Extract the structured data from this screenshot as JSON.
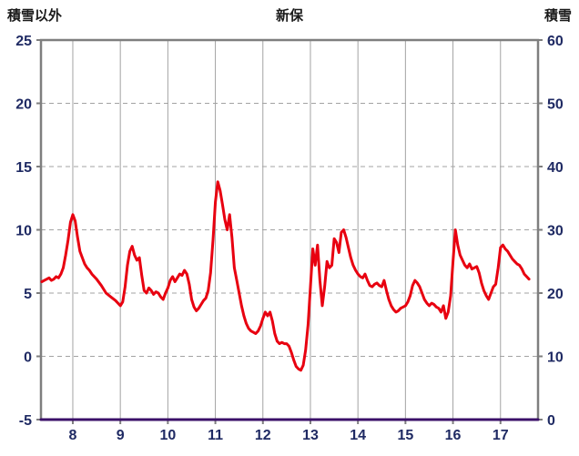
{
  "chart_data": {
    "type": "line",
    "title": "新保",
    "left_axis": {
      "label": "積雪以外",
      "min": -5,
      "max": 25,
      "ticks": [
        25,
        20,
        15,
        10,
        5,
        0,
        -5
      ]
    },
    "right_axis": {
      "label": "積雪",
      "min": 0,
      "max": 60,
      "ticks": [
        60,
        50,
        40,
        30,
        20,
        10,
        0
      ]
    },
    "x_axis": {
      "min": 7.33,
      "max": 17.79,
      "ticks": [
        8,
        9,
        10,
        11,
        12,
        13,
        14,
        15,
        16,
        17
      ]
    },
    "grid": {
      "vertical": "solid",
      "horizontal": "dashed",
      "visible": true
    },
    "legend": "none",
    "style": {
      "grid_color": "#a3a3a3",
      "border_color": "#7f7f7f",
      "tick_color": "#1f2a63",
      "background": "#ffffff"
    },
    "series": [
      {
        "name": "積雪以外",
        "axis": "left",
        "color": "#e80010",
        "width": 3,
        "points": [
          [
            7.35,
            5.9
          ],
          [
            7.4,
            6.0
          ],
          [
            7.45,
            6.1
          ],
          [
            7.5,
            6.2
          ],
          [
            7.55,
            6.0
          ],
          [
            7.6,
            6.1
          ],
          [
            7.65,
            6.3
          ],
          [
            7.7,
            6.2
          ],
          [
            7.75,
            6.5
          ],
          [
            7.8,
            7.0
          ],
          [
            7.85,
            8.0
          ],
          [
            7.9,
            9.2
          ],
          [
            7.95,
            10.6
          ],
          [
            8.0,
            11.2
          ],
          [
            8.05,
            10.7
          ],
          [
            8.1,
            9.4
          ],
          [
            8.15,
            8.3
          ],
          [
            8.2,
            7.8
          ],
          [
            8.25,
            7.3
          ],
          [
            8.3,
            7.0
          ],
          [
            8.35,
            6.8
          ],
          [
            8.4,
            6.5
          ],
          [
            8.5,
            6.1
          ],
          [
            8.6,
            5.6
          ],
          [
            8.7,
            5.0
          ],
          [
            8.8,
            4.7
          ],
          [
            8.9,
            4.4
          ],
          [
            9.0,
            4.0
          ],
          [
            9.05,
            4.3
          ],
          [
            9.1,
            5.5
          ],
          [
            9.15,
            7.2
          ],
          [
            9.2,
            8.3
          ],
          [
            9.25,
            8.7
          ],
          [
            9.3,
            8.0
          ],
          [
            9.35,
            7.6
          ],
          [
            9.4,
            7.8
          ],
          [
            9.45,
            6.4
          ],
          [
            9.5,
            5.2
          ],
          [
            9.55,
            5.0
          ],
          [
            9.6,
            5.4
          ],
          [
            9.65,
            5.2
          ],
          [
            9.7,
            4.9
          ],
          [
            9.75,
            5.1
          ],
          [
            9.8,
            5.0
          ],
          [
            9.85,
            4.7
          ],
          [
            9.9,
            4.5
          ],
          [
            9.95,
            5.0
          ],
          [
            10.0,
            5.4
          ],
          [
            10.05,
            6.0
          ],
          [
            10.1,
            6.3
          ],
          [
            10.15,
            5.9
          ],
          [
            10.2,
            6.2
          ],
          [
            10.25,
            6.5
          ],
          [
            10.3,
            6.4
          ],
          [
            10.35,
            6.8
          ],
          [
            10.4,
            6.5
          ],
          [
            10.45,
            5.7
          ],
          [
            10.5,
            4.5
          ],
          [
            10.55,
            3.9
          ],
          [
            10.6,
            3.6
          ],
          [
            10.65,
            3.8
          ],
          [
            10.7,
            4.1
          ],
          [
            10.75,
            4.4
          ],
          [
            10.8,
            4.6
          ],
          [
            10.85,
            5.2
          ],
          [
            10.9,
            6.6
          ],
          [
            10.95,
            9.2
          ],
          [
            11.0,
            12.2
          ],
          [
            11.05,
            13.8
          ],
          [
            11.1,
            13.1
          ],
          [
            11.15,
            12.0
          ],
          [
            11.2,
            10.8
          ],
          [
            11.25,
            10.0
          ],
          [
            11.3,
            11.2
          ],
          [
            11.35,
            9.4
          ],
          [
            11.4,
            7.0
          ],
          [
            11.45,
            6.0
          ],
          [
            11.5,
            5.0
          ],
          [
            11.55,
            4.0
          ],
          [
            11.6,
            3.2
          ],
          [
            11.65,
            2.6
          ],
          [
            11.7,
            2.2
          ],
          [
            11.75,
            2.0
          ],
          [
            11.8,
            1.9
          ],
          [
            11.85,
            1.8
          ],
          [
            11.9,
            2.0
          ],
          [
            11.95,
            2.4
          ],
          [
            12.0,
            3.0
          ],
          [
            12.05,
            3.5
          ],
          [
            12.1,
            3.2
          ],
          [
            12.15,
            3.5
          ],
          [
            12.2,
            2.8
          ],
          [
            12.25,
            1.8
          ],
          [
            12.3,
            1.2
          ],
          [
            12.35,
            1.0
          ],
          [
            12.4,
            1.1
          ],
          [
            12.45,
            1.0
          ],
          [
            12.5,
            1.0
          ],
          [
            12.55,
            0.8
          ],
          [
            12.6,
            0.3
          ],
          [
            12.65,
            -0.3
          ],
          [
            12.7,
            -0.8
          ],
          [
            12.75,
            -1.0
          ],
          [
            12.8,
            -1.1
          ],
          [
            12.85,
            -0.7
          ],
          [
            12.9,
            0.5
          ],
          [
            12.95,
            2.5
          ],
          [
            13.0,
            5.5
          ],
          [
            13.05,
            8.5
          ],
          [
            13.1,
            7.2
          ],
          [
            13.15,
            8.8
          ],
          [
            13.2,
            6.0
          ],
          [
            13.25,
            4.0
          ],
          [
            13.3,
            5.5
          ],
          [
            13.35,
            7.5
          ],
          [
            13.4,
            7.0
          ],
          [
            13.45,
            7.2
          ],
          [
            13.5,
            9.3
          ],
          [
            13.55,
            9.0
          ],
          [
            13.6,
            8.2
          ],
          [
            13.65,
            9.8
          ],
          [
            13.7,
            10.0
          ],
          [
            13.75,
            9.4
          ],
          [
            13.8,
            8.6
          ],
          [
            13.85,
            7.8
          ],
          [
            13.9,
            7.2
          ],
          [
            13.95,
            6.8
          ],
          [
            14.0,
            6.5
          ],
          [
            14.05,
            6.3
          ],
          [
            14.1,
            6.2
          ],
          [
            14.15,
            6.5
          ],
          [
            14.2,
            6.0
          ],
          [
            14.25,
            5.6
          ],
          [
            14.3,
            5.5
          ],
          [
            14.35,
            5.7
          ],
          [
            14.4,
            5.8
          ],
          [
            14.45,
            5.6
          ],
          [
            14.5,
            5.5
          ],
          [
            14.55,
            6.0
          ],
          [
            14.6,
            5.2
          ],
          [
            14.65,
            4.5
          ],
          [
            14.7,
            4.0
          ],
          [
            14.75,
            3.7
          ],
          [
            14.8,
            3.5
          ],
          [
            14.85,
            3.6
          ],
          [
            14.9,
            3.8
          ],
          [
            14.95,
            3.9
          ],
          [
            15.0,
            4.0
          ],
          [
            15.05,
            4.3
          ],
          [
            15.1,
            4.8
          ],
          [
            15.15,
            5.6
          ],
          [
            15.2,
            6.0
          ],
          [
            15.25,
            5.8
          ],
          [
            15.3,
            5.5
          ],
          [
            15.35,
            5.0
          ],
          [
            15.4,
            4.5
          ],
          [
            15.45,
            4.2
          ],
          [
            15.5,
            4.0
          ],
          [
            15.55,
            4.2
          ],
          [
            15.6,
            4.1
          ],
          [
            15.65,
            3.9
          ],
          [
            15.7,
            3.8
          ],
          [
            15.75,
            3.5
          ],
          [
            15.8,
            4.0
          ],
          [
            15.85,
            3.0
          ],
          [
            15.9,
            3.5
          ],
          [
            15.95,
            4.8
          ],
          [
            16.0,
            7.5
          ],
          [
            16.05,
            10.0
          ],
          [
            16.1,
            8.8
          ],
          [
            16.15,
            8.0
          ],
          [
            16.2,
            7.6
          ],
          [
            16.25,
            7.2
          ],
          [
            16.3,
            7.0
          ],
          [
            16.35,
            7.3
          ],
          [
            16.4,
            6.9
          ],
          [
            16.45,
            7.0
          ],
          [
            16.5,
            7.1
          ],
          [
            16.55,
            6.6
          ],
          [
            16.6,
            5.8
          ],
          [
            16.65,
            5.2
          ],
          [
            16.7,
            4.8
          ],
          [
            16.75,
            4.5
          ],
          [
            16.8,
            5.0
          ],
          [
            16.85,
            5.5
          ],
          [
            16.9,
            5.7
          ],
          [
            16.95,
            7.0
          ],
          [
            17.0,
            8.6
          ],
          [
            17.05,
            8.8
          ],
          [
            17.1,
            8.5
          ],
          [
            17.15,
            8.3
          ],
          [
            17.2,
            8.0
          ],
          [
            17.25,
            7.7
          ],
          [
            17.3,
            7.5
          ],
          [
            17.35,
            7.3
          ],
          [
            17.4,
            7.2
          ],
          [
            17.45,
            6.9
          ],
          [
            17.5,
            6.5
          ],
          [
            17.55,
            6.3
          ],
          [
            17.6,
            6.1
          ]
        ]
      },
      {
        "name": "積雪",
        "axis": "right",
        "color": "#3b1069",
        "width": 3,
        "points": [
          [
            7.33,
            0
          ],
          [
            17.79,
            0
          ]
        ]
      }
    ]
  }
}
